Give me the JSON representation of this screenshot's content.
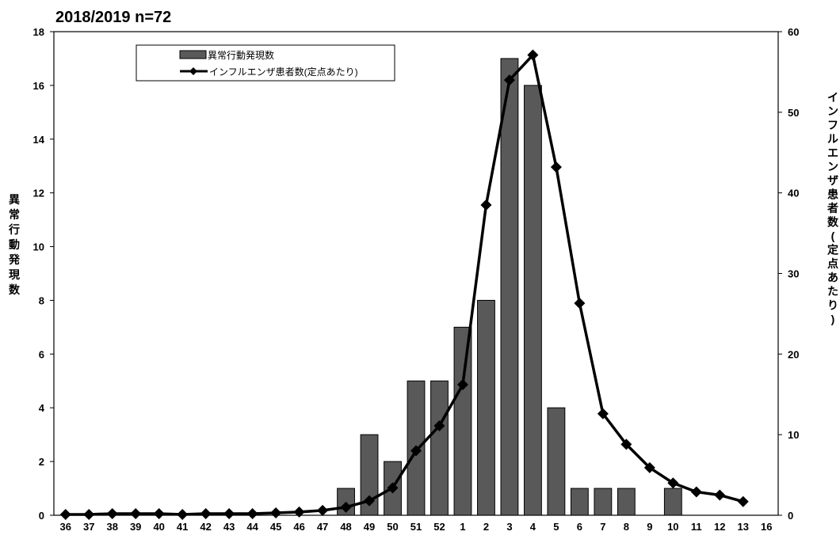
{
  "chart_data": {
    "type": "bar+line",
    "title": "2018/2019 n=72",
    "categories": [
      "36",
      "37",
      "38",
      "39",
      "40",
      "41",
      "42",
      "43",
      "44",
      "45",
      "46",
      "47",
      "48",
      "49",
      "50",
      "51",
      "52",
      "1",
      "2",
      "3",
      "4",
      "5",
      "6",
      "7",
      "8",
      "9",
      "10",
      "11",
      "12",
      "13",
      "16"
    ],
    "y_left": {
      "label": "異常行動発現数",
      "range": [
        0,
        18
      ],
      "ticks": [
        "0",
        "2",
        "4",
        "6",
        "8",
        "10",
        "12",
        "14",
        "16",
        "18"
      ]
    },
    "y_right": {
      "label": "インフルエンザ患者数(定点あたり)",
      "range": [
        0,
        60
      ],
      "ticks": [
        "0",
        "10",
        "20",
        "30",
        "40",
        "50",
        "60"
      ]
    },
    "series": [
      {
        "name": "異常行動発現数",
        "kind": "bar",
        "axis": "left",
        "color": "#595959",
        "values": [
          0,
          0,
          0,
          0,
          0,
          0,
          0,
          0,
          0,
          0,
          0,
          0,
          1,
          3,
          2,
          5,
          5,
          7,
          8,
          17,
          16,
          4,
          1,
          1,
          1,
          0,
          1,
          0,
          0,
          0,
          0
        ]
      },
      {
        "name": "インフルエンザ患者数(定点あたり)",
        "kind": "line",
        "axis": "right",
        "color": "#000000",
        "values": [
          0.1,
          0.1,
          0.2,
          0.2,
          0.2,
          0.1,
          0.2,
          0.2,
          0.2,
          0.3,
          0.4,
          0.6,
          1.0,
          1.8,
          3.4,
          8.0,
          11.1,
          16.2,
          38.5,
          54.0,
          57.1,
          43.2,
          26.3,
          12.6,
          8.8,
          5.9,
          4.0,
          2.9,
          2.5,
          1.7,
          null
        ]
      }
    ],
    "grid": false,
    "legend_position": "top-left"
  }
}
